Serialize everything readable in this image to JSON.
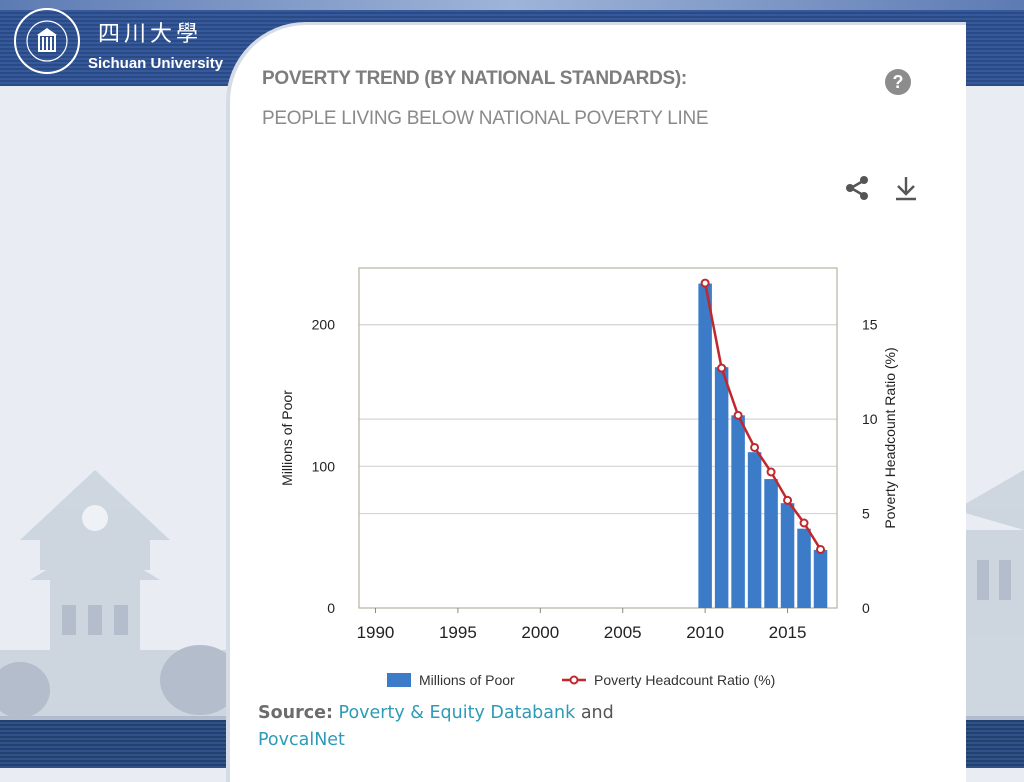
{
  "header": {
    "university_cn": "四川大學",
    "university_en": "Sichuan University",
    "logo_icon": "university-seal-icon"
  },
  "card": {
    "title": "POVERTY TREND (BY NATIONAL STANDARDS):",
    "subtitle": "PEOPLE LIVING BELOW NATIONAL POVERTY LINE",
    "help_label": "?",
    "share_icon": "share-icon",
    "download_icon": "download-icon"
  },
  "source": {
    "label": "Source:",
    "link1": "Poverty & Equity Databank",
    "connector": "and",
    "link2": "PovcalNet"
  },
  "colors": {
    "bar": "#3b7bc8",
    "line": "#c0282d",
    "grid": "#d5d5d5",
    "frame": "#b8b2a0"
  },
  "chart_data": {
    "type": "bar",
    "title": "",
    "xlabel": "",
    "ylabel": "Millions of Poor",
    "y2label": "Poverty Headcount Ratio (%)",
    "xlim": [
      1989,
      2018
    ],
    "ylim": [
      0,
      240
    ],
    "y2lim": [
      0,
      18
    ],
    "x_ticks": [
      1990,
      1995,
      2000,
      2005,
      2010,
      2015
    ],
    "x_tick_labels": [
      "1990",
      "1995",
      "2000",
      "2005",
      "2010",
      "2015"
    ],
    "y_ticks": [
      0,
      100,
      200
    ],
    "y_tick_labels": [
      "0",
      "100",
      "200"
    ],
    "y2_ticks": [
      0,
      5,
      10,
      15
    ],
    "y2_tick_labels": [
      "0",
      "5",
      "10",
      "15"
    ],
    "categories": [
      "2010",
      "2011",
      "2012",
      "2013",
      "2014",
      "2015",
      "2016",
      "2017"
    ],
    "series": [
      {
        "name": "Millions of Poor",
        "kind": "bar",
        "x": [
          2010,
          2011,
          2012,
          2013,
          2014,
          2015,
          2016,
          2017
        ],
        "values": [
          229,
          170,
          136,
          110,
          91,
          74,
          56,
          41
        ]
      },
      {
        "name": "Poverty Headcount Ratio (%)",
        "kind": "line",
        "axis": "right",
        "x": [
          2010,
          2011,
          2012,
          2013,
          2014,
          2015,
          2016,
          2017
        ],
        "values": [
          17.2,
          12.7,
          10.2,
          8.5,
          7.2,
          5.7,
          4.5,
          3.1
        ]
      }
    ],
    "legend": [
      "Millions of Poor",
      "Poverty Headcount Ratio (%)"
    ],
    "legend_position": "bottom-center",
    "grid": true
  }
}
